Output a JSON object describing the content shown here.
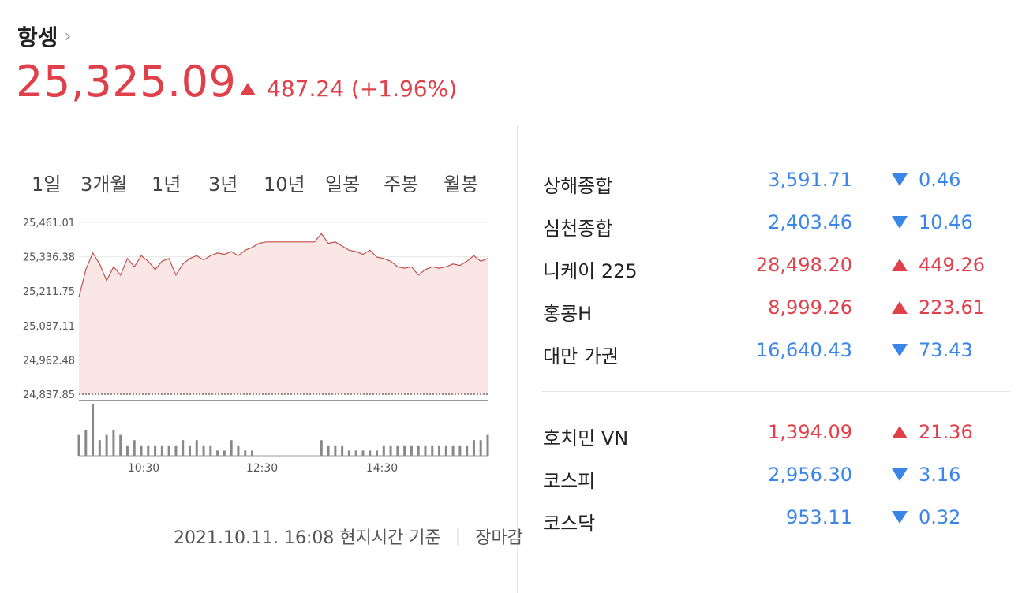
{
  "header": {
    "title": "항셍",
    "chevron": "›",
    "price": "25,325.09",
    "change": "487.24 (+1.96%)",
    "direction": "up",
    "color_up": "#e0404a",
    "color_down": "#3a86e8"
  },
  "tabs": [
    "1일",
    "3개월",
    "1년",
    "3년",
    "10년",
    "일봉",
    "주봉",
    "월봉"
  ],
  "active_tab": "1일",
  "chart_data": {
    "type": "area",
    "y_ticks": [
      "25,461.01",
      "25,336.38",
      "25,211.75",
      "25,087.11",
      "24,962.48",
      "24,837.85"
    ],
    "ylim": [
      24837.85,
      25461.01
    ],
    "x_ticks": [
      "10:30",
      "12:30",
      "14:30"
    ],
    "prev_close": 24837.85,
    "values": [
      25190,
      25290,
      25350,
      25310,
      25250,
      25300,
      25270,
      25330,
      25300,
      25340,
      25320,
      25290,
      25320,
      25330,
      25270,
      25310,
      25330,
      25340,
      25325,
      25340,
      25350,
      25345,
      25355,
      25340,
      25360,
      25370,
      25385,
      25390,
      25390,
      25390,
      25390,
      25390,
      25390,
      25390,
      25390,
      25420,
      25385,
      25390,
      25375,
      25360,
      25355,
      25345,
      25360,
      25335,
      25330,
      25320,
      25300,
      25295,
      25300,
      25270,
      25290,
      25300,
      25295,
      25300,
      25310,
      25305,
      25320,
      25340,
      25320,
      25330
    ],
    "volume": [
      4,
      5,
      10,
      3,
      4,
      5,
      4,
      2,
      3,
      2,
      2,
      2,
      2,
      2,
      2,
      3,
      2,
      3,
      2,
      2,
      1,
      1,
      3,
      2,
      1,
      1,
      0,
      0,
      0,
      0,
      0,
      0,
      0,
      0,
      0,
      3,
      2,
      2,
      2,
      1,
      1,
      1,
      1,
      1,
      2,
      2,
      2,
      2,
      2,
      2,
      2,
      2,
      2,
      2,
      2,
      2,
      2,
      3,
      3,
      4
    ],
    "line_color": "#c0504d",
    "fill_color": "#fbe6e6"
  },
  "footer": {
    "timestamp": "2021.10.11. 16:08 현지시간 기준",
    "separator": "|",
    "status": "장마감"
  },
  "indices_group1": [
    {
      "name": "상해종합",
      "value": "3,591.71",
      "change": "0.46",
      "direction": "down"
    },
    {
      "name": "심천종합",
      "value": "2,403.46",
      "change": "10.46",
      "direction": "down"
    },
    {
      "name": "니케이 225",
      "value": "28,498.20",
      "change": "449.26",
      "direction": "up"
    },
    {
      "name": "홍콩H",
      "value": "8,999.26",
      "change": "223.61",
      "direction": "up"
    },
    {
      "name": "대만 가권",
      "value": "16,640.43",
      "change": "73.43",
      "direction": "down"
    }
  ],
  "indices_group2": [
    {
      "name": "호치민 VN",
      "value": "1,394.09",
      "change": "21.36",
      "direction": "up"
    },
    {
      "name": "코스피",
      "value": "2,956.30",
      "change": "3.16",
      "direction": "down"
    },
    {
      "name": "코스닥",
      "value": "953.11",
      "change": "0.32",
      "direction": "down"
    }
  ]
}
